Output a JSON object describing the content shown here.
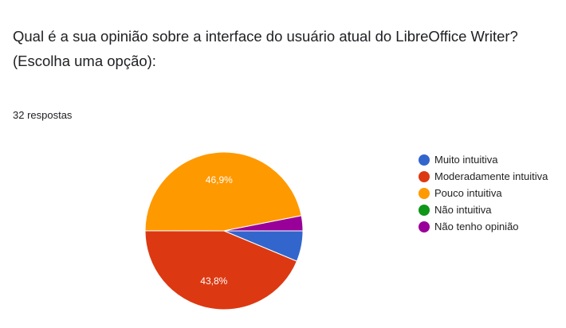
{
  "question": {
    "line1": "Qual é a sua opinião sobre a interface do usuário atual do LibreOffice Writer?",
    "line2": "(Escolha uma opção):"
  },
  "responses_label": "32 respostas",
  "chart_data": {
    "type": "pie",
    "slices": [
      {
        "label": "Muito intuitiva",
        "value": 6.3,
        "color": "#3366cc",
        "display": ""
      },
      {
        "label": "Moderadamente intuitiva",
        "value": 43.8,
        "color": "#dc3912",
        "display": "43,8%"
      },
      {
        "label": "Pouco intuitiva",
        "value": 46.9,
        "color": "#ff9900",
        "display": "46,9%"
      },
      {
        "label": "Não intuitiva",
        "value": 0,
        "color": "#109618",
        "display": ""
      },
      {
        "label": "Não tenho opinião",
        "value": 3.1,
        "color": "#990099",
        "display": ""
      }
    ],
    "legend_position": "right"
  }
}
